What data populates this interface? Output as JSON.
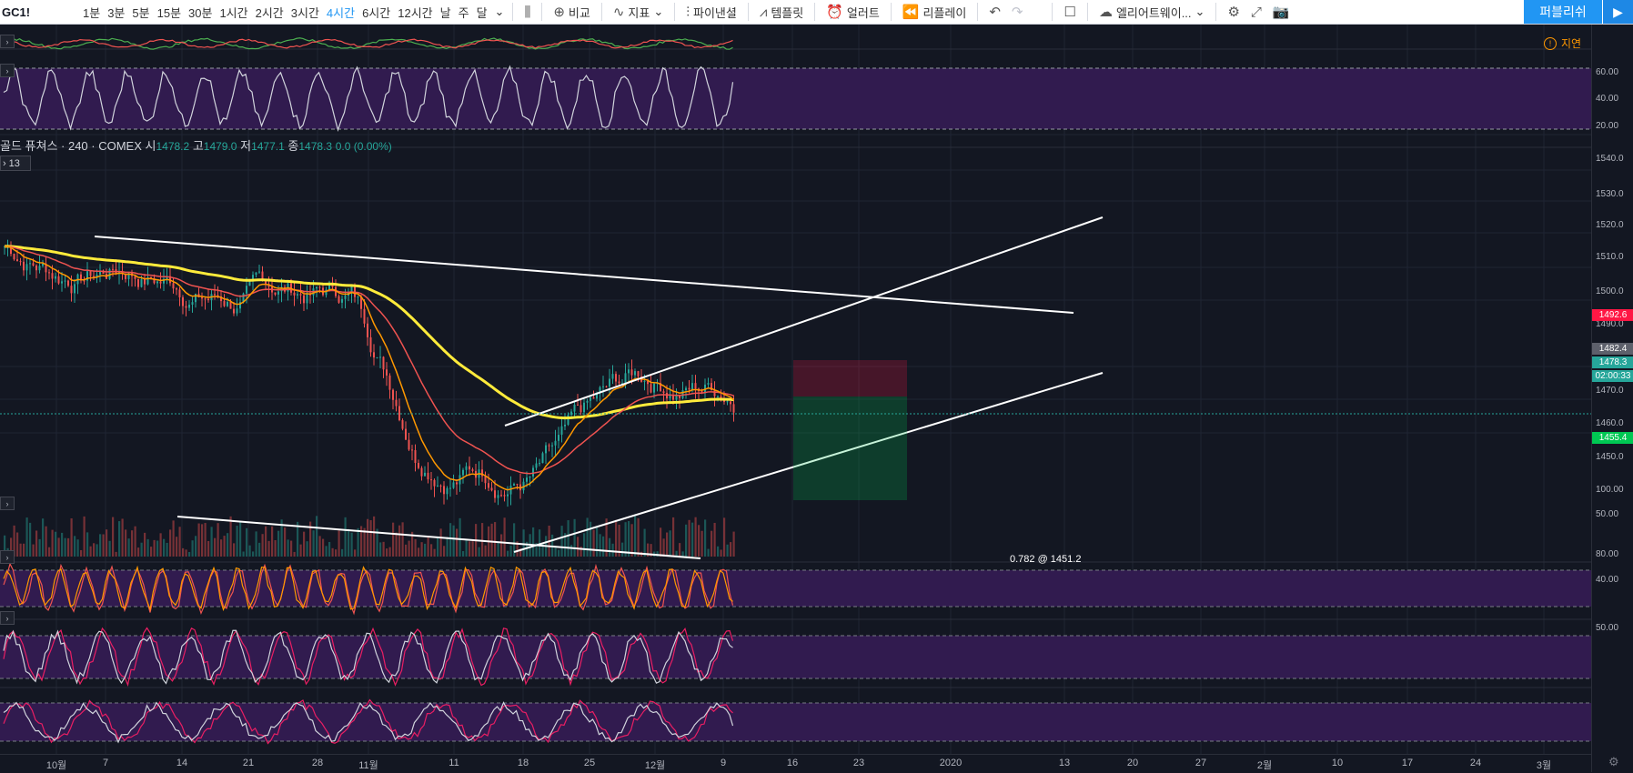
{
  "toolbar": {
    "symbol": "GC1!",
    "intervals": [
      "1분",
      "3분",
      "5분",
      "15분",
      "30분",
      "1시간",
      "2시간",
      "3시간",
      "4시간",
      "6시간",
      "12시간",
      "날",
      "주",
      "달"
    ],
    "active_interval": "4시간",
    "compare_label": "비교",
    "indicators_label": "지표",
    "financials_label": "파이낸셜",
    "templates_label": "템플릿",
    "alert_label": "얼러트",
    "replay_label": "리플레이",
    "layout_label": "엘리어트웨이...",
    "publish_label": "퍼블리쉬"
  },
  "status": {
    "delay_label": "지연",
    "badge_count": "13"
  },
  "legend": {
    "title": "골드 퓨쳐스 · 240 · COMEX",
    "open_label": "시",
    "open": "1478.2",
    "high_label": "고",
    "high": "1479.0",
    "low_label": "저",
    "low": "1477.1",
    "close_label": "종",
    "close": "1478.3",
    "change": "0.0 (0.00%)"
  },
  "price_axis": {
    "main_ticks": [
      "1540.0",
      "1530.0",
      "1520.0",
      "1510.0",
      "1500.0",
      "1490.0",
      "1470.0",
      "1460.0",
      "1450.0"
    ],
    "rsi_ticks": [
      "60.00",
      "40.00",
      "20.00"
    ],
    "stoch_ticks": [
      "100.00",
      "50.00"
    ],
    "stoch2_ticks": [
      "80.00",
      "40.00"
    ],
    "stoch3_ticks": [
      "50.00"
    ],
    "tags": [
      {
        "text": "1492.6",
        "color": "#ff1744"
      },
      {
        "text": "1482.4",
        "color": "#5d606b"
      },
      {
        "text": "1478.3",
        "color": "#26a69a"
      },
      {
        "text": "02:00:33",
        "color": "#26a69a"
      },
      {
        "text": "1455.4",
        "color": "#00c853"
      }
    ]
  },
  "time_axis": [
    "10월",
    "7",
    "14",
    "21",
    "28",
    "11월",
    "11",
    "18",
    "25",
    "12월",
    "9",
    "16",
    "23",
    "2020",
    "13",
    "20",
    "27",
    "2월",
    "10",
    "17",
    "24",
    "3월"
  ],
  "partial_label": "0.782 @ 1451.2",
  "colors": {
    "up": "#26a69a",
    "down": "#ef5350",
    "ema_slow": "#ffeb3b",
    "ema_mid": "#ef5350",
    "ema_fast": "#ff9800",
    "oscillator_bg": "#311b4f"
  }
}
